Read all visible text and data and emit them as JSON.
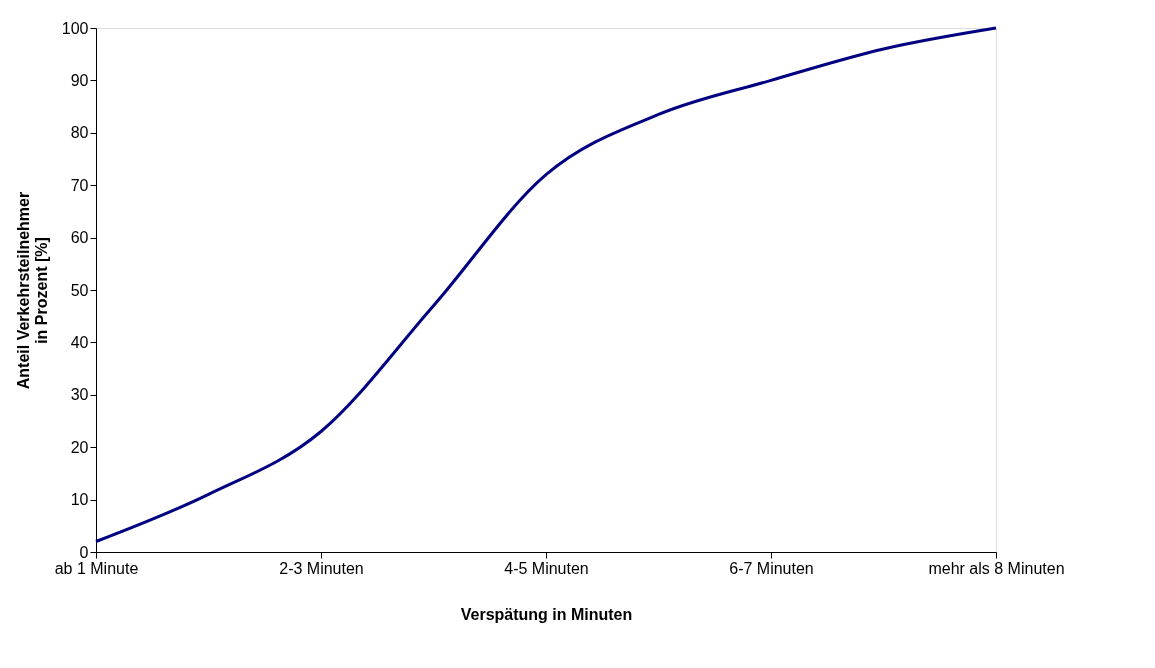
{
  "chart_data": {
    "type": "line",
    "xlabel": "Verspätung in Minuten",
    "ylabel": "Anteil Verkehrsteilnehmer\nin Prozent [%]",
    "categories": [
      "ab 1 Minute",
      null,
      "2-3 Minuten",
      null,
      "4-5 Minuten",
      null,
      "6-7 Minuten",
      null,
      "mehr als 8 Minuten"
    ],
    "series": [
      {
        "color": "#000080",
        "values": [
          2,
          11,
          23,
          47,
          72,
          83.5,
          90,
          96,
          100
        ]
      }
    ],
    "ylim": [
      0,
      100
    ],
    "yticks": [
      0,
      10,
      20,
      30,
      40,
      50,
      60,
      70,
      80,
      90,
      100
    ],
    "grid": false,
    "marker": "none",
    "line_style": "solid"
  }
}
